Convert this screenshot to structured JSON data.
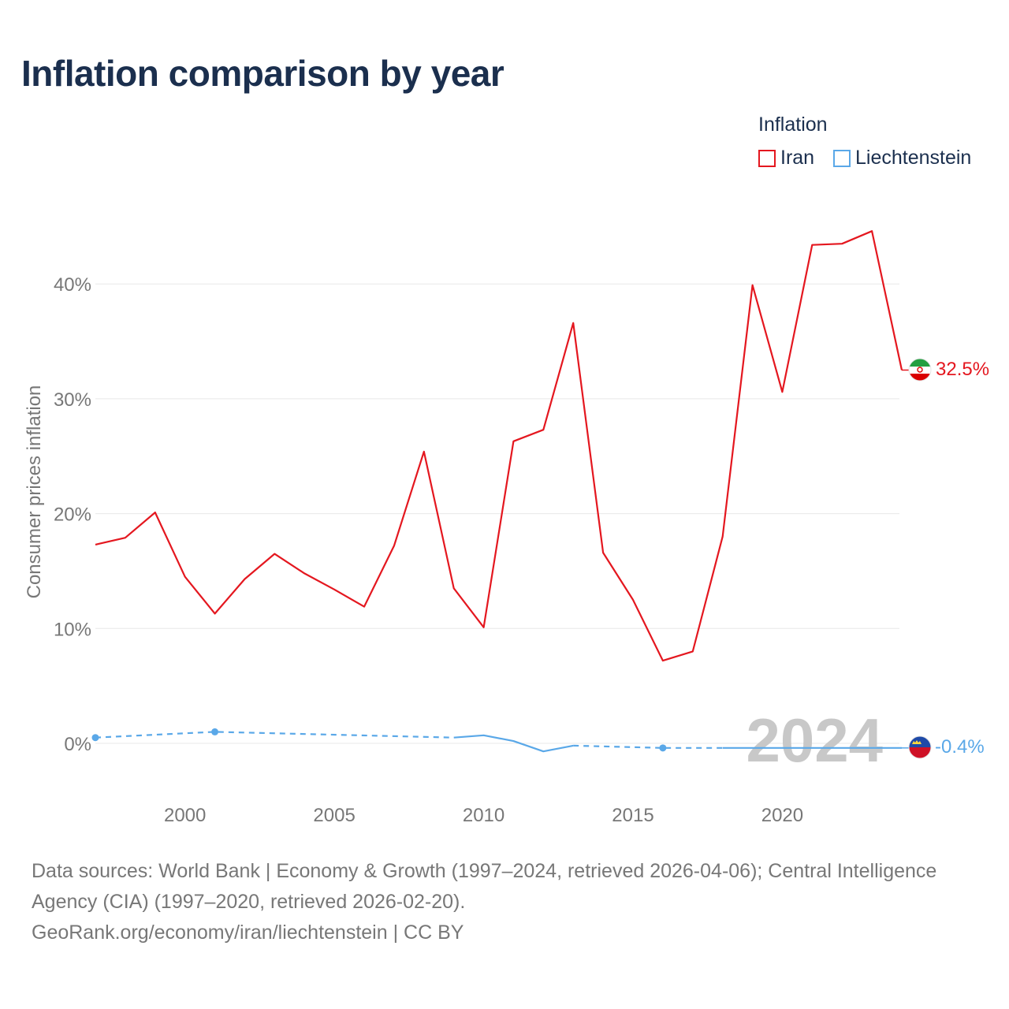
{
  "title": "Inflation comparison by year",
  "legend": {
    "title": "Inflation",
    "items": [
      {
        "label": "Iran",
        "color": "#e4171f"
      },
      {
        "label": "Liechtenstein",
        "color": "#5aa8e8"
      }
    ]
  },
  "footer": {
    "sources": "Data sources: World Bank | Economy & Growth (1997–2024, retrieved 2026-04-06); Central Intelligence Agency (CIA) (1997–2020, retrieved 2026-02-20).",
    "credit": "GeoRank.org/economy/iran/liechtenstein | CC BY"
  },
  "chart_data": {
    "type": "line",
    "title": "Inflation comparison by year",
    "ylabel": "Consumer prices inflation",
    "xlabel": "",
    "xlim": [
      1997,
      2024
    ],
    "ylim": [
      -4,
      48
    ],
    "x_ticks": [
      2000,
      2005,
      2010,
      2015,
      2020
    ],
    "y_ticks": [
      0,
      10,
      20,
      30,
      40
    ],
    "y_tick_labels": [
      "0%",
      "10%",
      "20%",
      "30%",
      "40%"
    ],
    "year_watermark": "2024",
    "grid": true,
    "series": [
      {
        "name": "Iran",
        "color": "#e4171f",
        "end_label": "32.5%",
        "points": [
          [
            1997,
            17.3
          ],
          [
            1998,
            17.9
          ],
          [
            1999,
            20.1
          ],
          [
            2000,
            14.5
          ],
          [
            2001,
            11.3
          ],
          [
            2002,
            14.3
          ],
          [
            2003,
            16.5
          ],
          [
            2004,
            14.8
          ],
          [
            2005,
            13.4
          ],
          [
            2006,
            11.9
          ],
          [
            2007,
            17.2
          ],
          [
            2008,
            25.4
          ],
          [
            2009,
            13.5
          ],
          [
            2010,
            10.1
          ],
          [
            2011,
            26.3
          ],
          [
            2012,
            27.3
          ],
          [
            2013,
            36.6
          ],
          [
            2014,
            16.6
          ],
          [
            2015,
            12.5
          ],
          [
            2016,
            7.2
          ],
          [
            2017,
            8.0
          ],
          [
            2018,
            18.0
          ],
          [
            2019,
            39.9
          ],
          [
            2020,
            30.6
          ],
          [
            2021,
            43.4
          ],
          [
            2022,
            43.5
          ],
          [
            2023,
            44.6
          ],
          [
            2024,
            32.5
          ]
        ]
      },
      {
        "name": "Liechtenstein",
        "color": "#5aa8e8",
        "end_label": "-0.4%",
        "segments": [
          {
            "style": "dashed",
            "points": [
              [
                1997,
                0.5
              ],
              [
                2001,
                1.0
              ],
              [
                2009,
                0.5
              ]
            ]
          },
          {
            "style": "solid",
            "points": [
              [
                2009,
                0.5
              ],
              [
                2010,
                0.7
              ],
              [
                2011,
                0.2
              ],
              [
                2012,
                -0.7
              ],
              [
                2013,
                -0.2
              ]
            ]
          },
          {
            "style": "dashed",
            "points": [
              [
                2013,
                -0.2
              ],
              [
                2016,
                -0.4
              ],
              [
                2018,
                -0.4
              ]
            ]
          },
          {
            "style": "solid",
            "points": [
              [
                2018,
                -0.4
              ],
              [
                2024,
                -0.4
              ]
            ]
          }
        ],
        "markers": [
          [
            1997,
            0.5
          ],
          [
            2001,
            1.0
          ],
          [
            2016,
            -0.4
          ]
        ]
      }
    ]
  }
}
